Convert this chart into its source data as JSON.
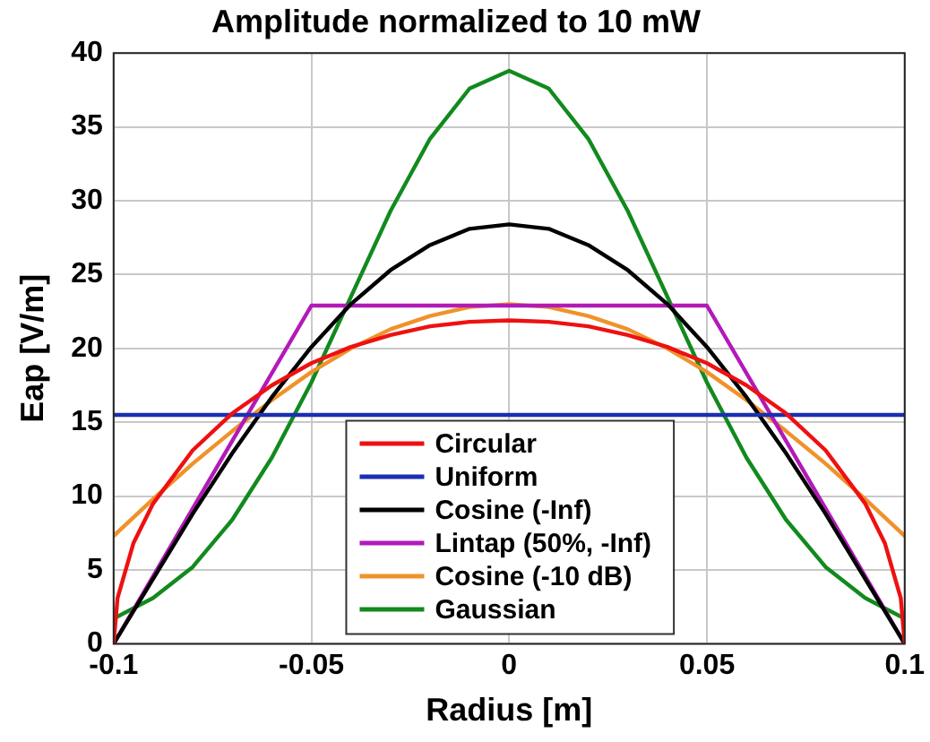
{
  "chart_data": {
    "type": "line",
    "title": "Amplitude normalized to 10 mW",
    "xlabel": "Radius [m]",
    "ylabel": "Eap [V/m]",
    "xlim": [
      -0.1,
      0.1
    ],
    "xticks": [
      -0.1,
      -0.05,
      0,
      0.05,
      0.1
    ],
    "ylim": [
      0,
      40
    ],
    "yticks": [
      0,
      5,
      10,
      15,
      20,
      25,
      30,
      35,
      40
    ],
    "grid": true,
    "legend": "bottom",
    "marker": "none",
    "line_style": "solid",
    "series": [
      {
        "name": "Circular",
        "color": "#ee1111",
        "x": [
          -0.1,
          -0.099,
          -0.095,
          -0.09,
          -0.08,
          -0.07,
          -0.06,
          -0.05,
          -0.04,
          -0.03,
          -0.02,
          -0.01,
          0,
          0.01,
          0.02,
          0.03,
          0.04,
          0.05,
          0.06,
          0.07,
          0.08,
          0.09,
          0.095,
          0.099,
          0.1
        ],
        "values": [
          0,
          3.1,
          6.8,
          9.5,
          13.1,
          15.6,
          17.5,
          19.0,
          20.1,
          20.9,
          21.5,
          21.8,
          21.9,
          21.8,
          21.5,
          20.9,
          20.1,
          19.0,
          17.5,
          15.6,
          13.1,
          9.5,
          6.8,
          3.1,
          0
        ]
      },
      {
        "name": "Uniform",
        "color": "#1a2fb0",
        "x": [
          -0.1,
          0.1
        ],
        "values": [
          15.5,
          15.5
        ]
      },
      {
        "name": "Cosine (-Inf)",
        "color": "#000000",
        "x": [
          -0.1,
          -0.09,
          -0.08,
          -0.07,
          -0.06,
          -0.05,
          -0.04,
          -0.03,
          -0.02,
          -0.01,
          0,
          0.01,
          0.02,
          0.03,
          0.04,
          0.05,
          0.06,
          0.07,
          0.08,
          0.09,
          0.1
        ],
        "values": [
          0,
          4.4,
          8.8,
          12.9,
          16.7,
          20.1,
          23.0,
          25.3,
          27.0,
          28.1,
          28.4,
          28.1,
          27.0,
          25.3,
          23.0,
          20.1,
          16.7,
          12.9,
          8.8,
          4.4,
          0
        ]
      },
      {
        "name": "Lintap (50%, -Inf)",
        "color": "#b21ab8",
        "x": [
          -0.1,
          -0.05,
          0.05,
          0.1
        ],
        "values": [
          0,
          22.9,
          22.9,
          0
        ]
      },
      {
        "name": "Cosine (-10 dB)",
        "color": "#f0922a",
        "x": [
          -0.1,
          -0.09,
          -0.08,
          -0.07,
          -0.06,
          -0.05,
          -0.04,
          -0.03,
          -0.02,
          -0.01,
          0,
          0.01,
          0.02,
          0.03,
          0.04,
          0.05,
          0.06,
          0.07,
          0.08,
          0.09,
          0.1
        ],
        "values": [
          7.3,
          9.8,
          12.2,
          14.4,
          16.5,
          18.4,
          20.0,
          21.3,
          22.2,
          22.8,
          23.0,
          22.8,
          22.2,
          21.3,
          20.0,
          18.4,
          16.5,
          14.4,
          12.2,
          9.8,
          7.3
        ]
      },
      {
        "name": "Gaussian",
        "color": "#128a1e",
        "x": [
          -0.1,
          -0.09,
          -0.08,
          -0.07,
          -0.06,
          -0.05,
          -0.04,
          -0.03,
          -0.02,
          -0.01,
          0,
          0.01,
          0.02,
          0.03,
          0.04,
          0.05,
          0.06,
          0.07,
          0.08,
          0.09,
          0.1
        ],
        "values": [
          1.7,
          3.1,
          5.2,
          8.4,
          12.6,
          17.7,
          23.5,
          29.3,
          34.2,
          37.6,
          38.8,
          37.6,
          34.2,
          29.3,
          23.5,
          17.7,
          12.6,
          8.4,
          5.2,
          3.1,
          1.7
        ]
      }
    ]
  }
}
